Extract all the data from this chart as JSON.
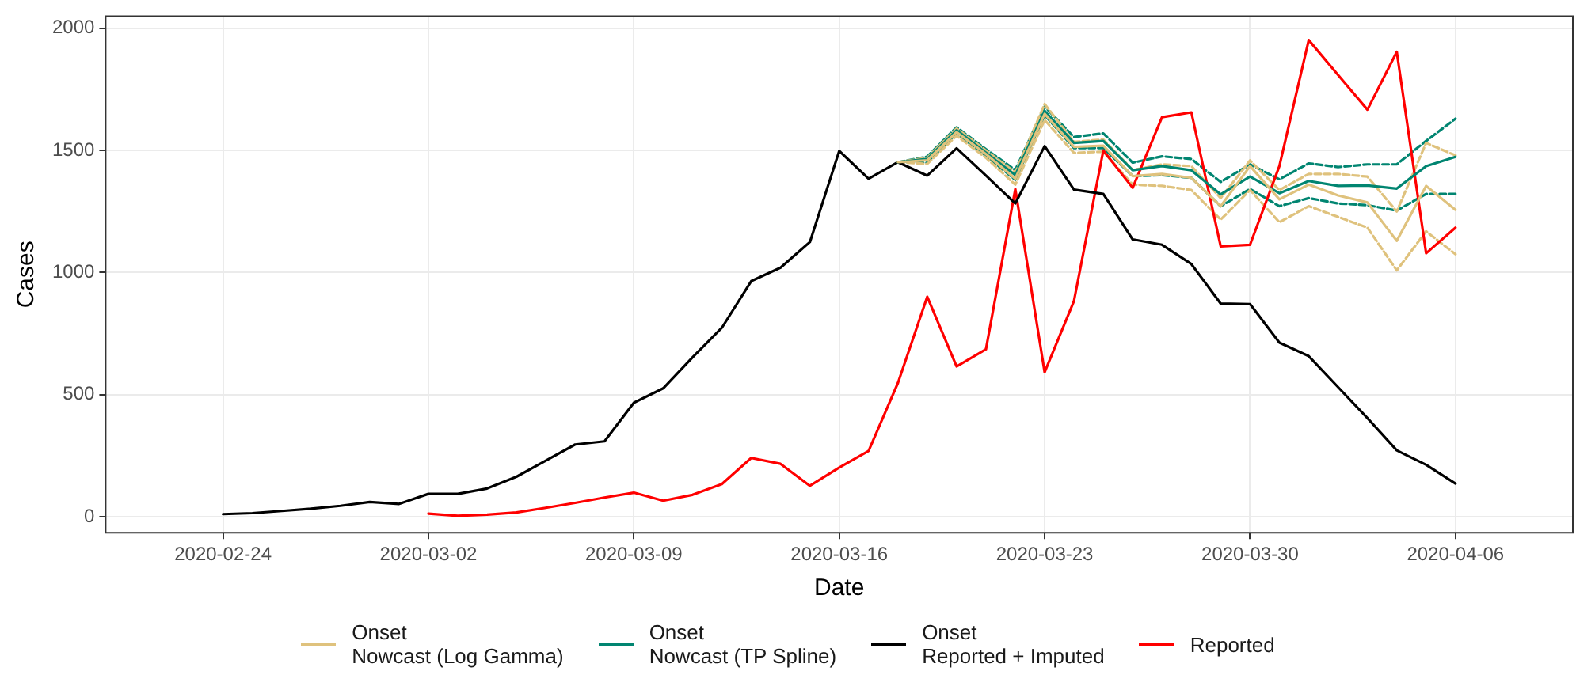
{
  "chart_data": {
    "type": "line",
    "xlabel": "Date",
    "ylabel": "Cases",
    "x": [
      "2020-02-24",
      "2020-02-25",
      "2020-02-26",
      "2020-02-27",
      "2020-02-28",
      "2020-02-29",
      "2020-03-01",
      "2020-03-02",
      "2020-03-03",
      "2020-03-04",
      "2020-03-05",
      "2020-03-06",
      "2020-03-07",
      "2020-03-08",
      "2020-03-09",
      "2020-03-10",
      "2020-03-11",
      "2020-03-12",
      "2020-03-13",
      "2020-03-14",
      "2020-03-15",
      "2020-03-16",
      "2020-03-17",
      "2020-03-18",
      "2020-03-19",
      "2020-03-20",
      "2020-03-21",
      "2020-03-22",
      "2020-03-23",
      "2020-03-24",
      "2020-03-25",
      "2020-03-26",
      "2020-03-27",
      "2020-03-28",
      "2020-03-29",
      "2020-03-30",
      "2020-03-31",
      "2020-04-01",
      "2020-04-02",
      "2020-04-03",
      "2020-04-04",
      "2020-04-05",
      "2020-04-06"
    ],
    "series": [
      {
        "name": "Onset\nNowcast (Log Gamma)",
        "color": "#dfc27d",
        "line_style": "solid",
        "values": [
          null,
          null,
          null,
          null,
          null,
          null,
          null,
          null,
          null,
          null,
          null,
          null,
          null,
          null,
          null,
          null,
          null,
          null,
          null,
          null,
          null,
          null,
          null,
          1452,
          1460,
          1575,
          1485,
          1385,
          1650,
          1515,
          1520,
          1395,
          1404,
          1388,
          1272,
          1436,
          1300,
          1360,
          1316,
          1287,
          1130,
          1355,
          1257
        ]
      },
      {
        "name": "Onset\nNowcast (TP Spline)",
        "color": "#018571",
        "line_style": "solid",
        "values": [
          null,
          null,
          null,
          null,
          null,
          null,
          null,
          null,
          null,
          null,
          null,
          null,
          null,
          null,
          null,
          null,
          null,
          null,
          null,
          null,
          null,
          null,
          null,
          1452,
          1465,
          1583,
          1491,
          1399,
          1662,
          1531,
          1539,
          1419,
          1436,
          1419,
          1320,
          1393,
          1325,
          1375,
          1355,
          1357,
          1344,
          1436,
          1474
        ]
      },
      {
        "name": "Onset\nReported + Imputed",
        "color": "#000000",
        "line_style": "solid",
        "values": [
          11,
          15,
          24,
          33,
          45,
          61,
          53,
          94,
          94,
          116,
          164,
          230,
          296,
          309,
          467,
          526,
          653,
          774,
          965,
          1020,
          1125,
          1498,
          1384,
          1452,
          1397,
          1509,
          1397,
          1283,
          1518,
          1340,
          1322,
          1136,
          1114,
          1035,
          873,
          871,
          713,
          658,
          531,
          404,
          272,
          213,
          136
        ]
      },
      {
        "name": "Reported",
        "color": "#ff0000",
        "line_style": "solid",
        "values": [
          null,
          null,
          null,
          null,
          null,
          null,
          null,
          13,
          4,
          9,
          18,
          37,
          57,
          79,
          99,
          66,
          90,
          134,
          241,
          217,
          127,
          202,
          270,
          548,
          901,
          616,
          686,
          1342,
          592,
          884,
          1500,
          1347,
          1636,
          1656,
          1107,
          1114,
          1436,
          1952,
          1809,
          1667,
          1904,
          1079,
          1184
        ]
      },
      {
        "color": "#dfc27d",
        "line_style": "dashed",
        "values": [
          null,
          null,
          null,
          null,
          null,
          null,
          null,
          null,
          null,
          null,
          null,
          null,
          null,
          null,
          null,
          null,
          null,
          null,
          null,
          null,
          null,
          null,
          null,
          1452,
          1470,
          1590,
          1500,
          1410,
          1690,
          1535,
          1545,
          1420,
          1443,
          1436,
          1305,
          1459,
          1338,
          1404,
          1404,
          1393,
          1250,
          1531,
          1480
        ]
      },
      {
        "color": "#dfc27d",
        "line_style": "dashed",
        "values": [
          null,
          null,
          null,
          null,
          null,
          null,
          null,
          null,
          null,
          null,
          null,
          null,
          null,
          null,
          null,
          null,
          null,
          null,
          null,
          null,
          null,
          null,
          null,
          1452,
          1445,
          1560,
          1470,
          1360,
          1625,
          1490,
          1495,
          1360,
          1355,
          1338,
          1217,
          1338,
          1206,
          1272,
          1228,
          1184,
          1009,
          1169,
          1075
        ]
      },
      {
        "color": "#018571",
        "line_style": "dashed",
        "values": [
          null,
          null,
          null,
          null,
          null,
          null,
          null,
          null,
          null,
          null,
          null,
          null,
          null,
          null,
          null,
          null,
          null,
          null,
          null,
          null,
          null,
          null,
          null,
          1452,
          1475,
          1595,
          1505,
          1420,
          1680,
          1555,
          1570,
          1450,
          1476,
          1465,
          1371,
          1443,
          1382,
          1447,
          1432,
          1443,
          1443,
          1539,
          1630
        ]
      },
      {
        "color": "#018571",
        "line_style": "dashed",
        "values": [
          null,
          null,
          null,
          null,
          null,
          null,
          null,
          null,
          null,
          null,
          null,
          null,
          null,
          null,
          null,
          null,
          null,
          null,
          null,
          null,
          null,
          null,
          null,
          1452,
          1450,
          1570,
          1478,
          1380,
          1645,
          1510,
          1510,
          1395,
          1399,
          1388,
          1272,
          1342,
          1272,
          1305,
          1283,
          1276,
          1254,
          1322,
          1322
        ]
      }
    ],
    "xlim": [
      "2020-02-20",
      "2020-04-10"
    ],
    "xticks": [
      "2020-02-24",
      "2020-03-02",
      "2020-03-09",
      "2020-03-16",
      "2020-03-23",
      "2020-03-30",
      "2020-04-06"
    ],
    "ylim": [
      -65,
      2050
    ],
    "yticks": [
      0,
      500,
      1000,
      1500,
      2000
    ],
    "grid": true,
    "legend": "bottom",
    "marker": "none"
  }
}
